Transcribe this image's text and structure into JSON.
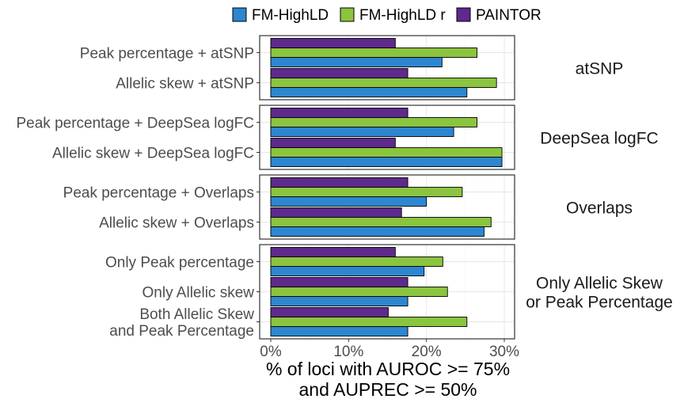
{
  "chart_data": {
    "type": "bar",
    "orientation": "horizontal",
    "legend": {
      "position": "top",
      "entries": [
        {
          "name": "FM-HighLD",
          "color": "#2E86D1"
        },
        {
          "name": "FM-HighLD r",
          "color": "#8BC43F"
        },
        {
          "name": "PAINTOR",
          "color": "#5E2A8C"
        }
      ]
    },
    "xlabel": [
      "% of loci with AUROC >= 75%",
      "and AUPREC >= 50%"
    ],
    "xlim": [
      0,
      0.3
    ],
    "xticks": [
      {
        "value": 0,
        "label": "0%"
      },
      {
        "value": 0.1,
        "label": "10%"
      },
      {
        "value": 0.2,
        "label": "20%"
      },
      {
        "value": 0.3,
        "label": "30%"
      }
    ],
    "grid": true,
    "facets": [
      {
        "label": [
          "atSNP"
        ],
        "categories": [
          {
            "label": [
              "Peak percentage + atSNP"
            ],
            "values": {
              "FM-HighLD": 0.22,
              "FM-HighLD r": 0.265,
              "PAINTOR": 0.16
            }
          },
          {
            "label": [
              "Allelic skew + atSNP"
            ],
            "values": {
              "FM-HighLD": 0.252,
              "FM-HighLD r": 0.29,
              "PAINTOR": 0.176
            }
          }
        ]
      },
      {
        "label": [
          "DeepSea logFC"
        ],
        "categories": [
          {
            "label": [
              "Peak percentage + DeepSea logFC"
            ],
            "values": {
              "FM-HighLD": 0.235,
              "FM-HighLD r": 0.265,
              "PAINTOR": 0.176
            }
          },
          {
            "label": [
              "Allelic skew + DeepSea logFC"
            ],
            "values": {
              "FM-HighLD": 0.297,
              "FM-HighLD r": 0.297,
              "PAINTOR": 0.16
            }
          }
        ]
      },
      {
        "label": [
          "Overlaps"
        ],
        "categories": [
          {
            "label": [
              "Peak percentage + Overlaps"
            ],
            "values": {
              "FM-HighLD": 0.2,
              "FM-HighLD r": 0.246,
              "PAINTOR": 0.176
            }
          },
          {
            "label": [
              "Allelic skew + Overlaps"
            ],
            "values": {
              "FM-HighLD": 0.274,
              "FM-HighLD r": 0.283,
              "PAINTOR": 0.168
            }
          }
        ]
      },
      {
        "label": [
          "Only Allelic Skew",
          "or Peak Percentage"
        ],
        "categories": [
          {
            "label": [
              "Only Peak percentage"
            ],
            "values": {
              "FM-HighLD": 0.197,
              "FM-HighLD r": 0.221,
              "PAINTOR": 0.16
            }
          },
          {
            "label": [
              "Only Allelic skew"
            ],
            "values": {
              "FM-HighLD": 0.176,
              "FM-HighLD r": 0.227,
              "PAINTOR": 0.176
            }
          },
          {
            "label": [
              "Both Allelic Skew",
              "and Peak Percentage"
            ],
            "values": {
              "FM-HighLD": 0.176,
              "FM-HighLD r": 0.252,
              "PAINTOR": 0.151
            }
          }
        ]
      }
    ]
  }
}
